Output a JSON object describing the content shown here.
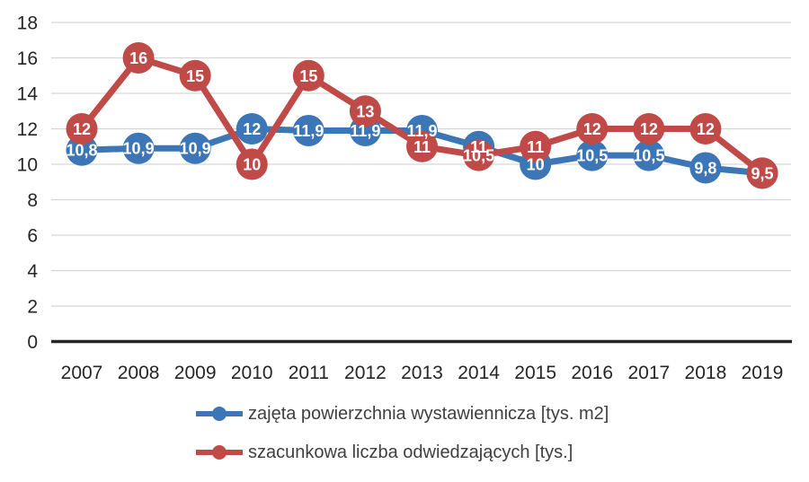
{
  "chart_data": {
    "type": "line",
    "title": "",
    "categories": [
      "2007",
      "2008",
      "2009",
      "2010",
      "2011",
      "2012",
      "2013",
      "2014",
      "2015",
      "2016",
      "2017",
      "2018",
      "2019"
    ],
    "series": [
      {
        "name": "zajęta powierzchnia wystawiennicza [tys. m2]",
        "color": "#3C76B6",
        "values": [
          10.8,
          10.9,
          10.9,
          12,
          11.9,
          11.9,
          11.9,
          11,
          10,
          10.5,
          10.5,
          9.8,
          9.5
        ],
        "labels": [
          "10,8",
          "10,9",
          "10,9",
          "12",
          "11,9",
          "11,9",
          "11,9",
          "11",
          "10",
          "10,5",
          "10,5",
          "9,8",
          ""
        ]
      },
      {
        "name": "szacunkowa liczba odwiedzających [tys.]",
        "color": "#BF4A47",
        "values": [
          12,
          16,
          15,
          10,
          15,
          13,
          11,
          10.5,
          11,
          12,
          12,
          12,
          9.5
        ],
        "labels": [
          "12",
          "16",
          "15",
          "10",
          "15",
          "13",
          "11",
          "10,5",
          "11",
          "12",
          "12",
          "12",
          "9,5"
        ]
      }
    ],
    "xlabel": "",
    "ylabel": "",
    "ylim": [
      0,
      18
    ],
    "yticks": [
      0,
      2,
      4,
      6,
      8,
      10,
      12,
      14,
      16,
      18
    ],
    "grid": true,
    "legend_position": "bottom",
    "colors": {
      "background": "#FFFFFF",
      "gridline": "#D6D6D6",
      "axis_line": "#262626",
      "tick_label": "#262626",
      "legend_text": "#3F3F3F",
      "data_label": "#FFFFFF"
    }
  }
}
